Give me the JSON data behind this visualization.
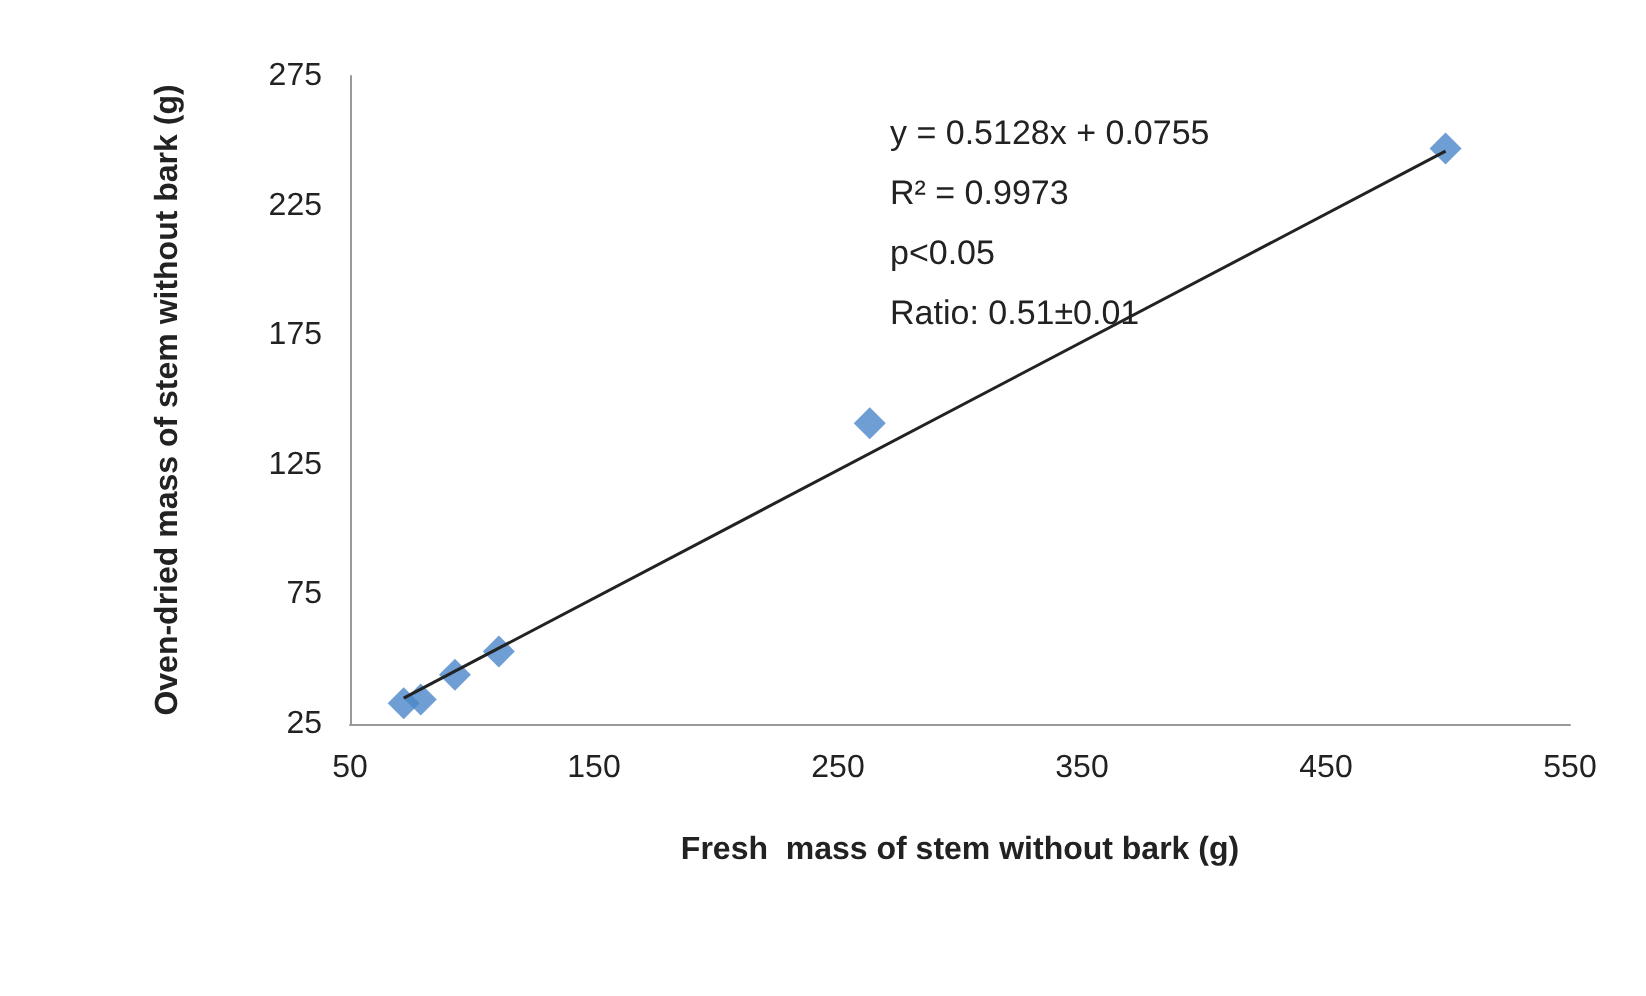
{
  "chart_data": {
    "type": "scatter",
    "xlabel": "Fresh  mass of stem without bark (g)",
    "ylabel": "Oven-dried mass of stem without bark (g)",
    "x": [
      72,
      79,
      93,
      111,
      263,
      499
    ],
    "series": [
      {
        "color": "#4a86c8",
        "values": [
          33,
          34.5,
          44,
          53,
          141,
          247
        ],
        "marker": "diamond"
      },
      {
        "type": "line",
        "color": "#222222",
        "x": [
          72,
          499
        ],
        "values": [
          35,
          246
        ],
        "marker": "none"
      }
    ],
    "xlim": [
      50,
      550
    ],
    "xticks": [
      50,
      150,
      250,
      350,
      450,
      550
    ],
    "ylim": [
      25,
      275
    ],
    "yticks": [
      25,
      75,
      125,
      175,
      225,
      275
    ],
    "grid": false,
    "annotations": [
      "y = 0.5128x + 0.0755",
      "R² = 0.9973",
      "p<0.05",
      "Ratio: 0.51±0.01"
    ]
  }
}
